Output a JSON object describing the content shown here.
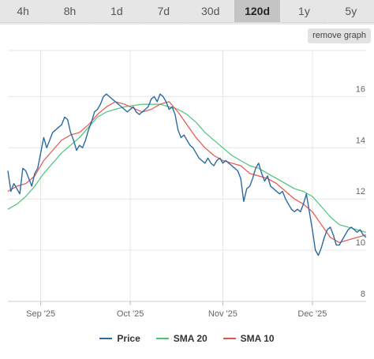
{
  "tabs": [
    {
      "label": "4h",
      "active": false
    },
    {
      "label": "8h",
      "active": false
    },
    {
      "label": "1d",
      "active": false
    },
    {
      "label": "7d",
      "active": false
    },
    {
      "label": "30d",
      "active": false
    },
    {
      "label": "120d",
      "active": true
    },
    {
      "label": "1y",
      "active": false
    },
    {
      "label": "5y",
      "active": false
    }
  ],
  "remove_graph_label": "remove graph",
  "chart_data": {
    "type": "line",
    "x_start": "2025-08-21",
    "ylim": [
      8,
      17.8
    ],
    "yticks": [
      8,
      10,
      12,
      14,
      16
    ],
    "xticks": [
      {
        "date": "2025-09-01",
        "label": "Sep '25"
      },
      {
        "date": "2025-10-01",
        "label": "Oct '25"
      },
      {
        "date": "2025-11-01",
        "label": "Nov '25"
      },
      {
        "date": "2025-12-01",
        "label": "Dec '25"
      }
    ],
    "grid": true,
    "legend_position": "bottom",
    "series": [
      {
        "name": "Price",
        "color": "#2b6aa0",
        "points": [
          [
            "2025-08-21",
            13.1
          ],
          [
            "2025-08-22",
            12.3
          ],
          [
            "2025-08-23",
            12.6
          ],
          [
            "2025-08-24",
            12.4
          ],
          [
            "2025-08-25",
            12.2
          ],
          [
            "2025-08-26",
            13.2
          ],
          [
            "2025-08-27",
            13.1
          ],
          [
            "2025-08-28",
            12.8
          ],
          [
            "2025-08-29",
            12.5
          ],
          [
            "2025-08-30",
            13.0
          ],
          [
            "2025-08-31",
            13.2
          ],
          [
            "2025-09-01",
            13.8
          ],
          [
            "2025-09-02",
            14.4
          ],
          [
            "2025-09-03",
            14.0
          ],
          [
            "2025-09-04",
            14.3
          ],
          [
            "2025-09-05",
            14.6
          ],
          [
            "2025-09-06",
            14.7
          ],
          [
            "2025-09-07",
            14.8
          ],
          [
            "2025-09-08",
            14.9
          ],
          [
            "2025-09-09",
            15.2
          ],
          [
            "2025-09-10",
            15.1
          ],
          [
            "2025-09-11",
            14.6
          ],
          [
            "2025-09-12",
            14.3
          ],
          [
            "2025-09-13",
            13.9
          ],
          [
            "2025-09-14",
            14.1
          ],
          [
            "2025-09-15",
            14.0
          ],
          [
            "2025-09-16",
            14.3
          ],
          [
            "2025-09-17",
            14.7
          ],
          [
            "2025-09-18",
            15.0
          ],
          [
            "2025-09-19",
            15.4
          ],
          [
            "2025-09-20",
            15.5
          ],
          [
            "2025-09-21",
            15.7
          ],
          [
            "2025-09-22",
            16.0
          ],
          [
            "2025-09-23",
            16.1
          ],
          [
            "2025-09-24",
            16.0
          ],
          [
            "2025-09-25",
            15.9
          ],
          [
            "2025-09-26",
            15.8
          ],
          [
            "2025-09-27",
            15.7
          ],
          [
            "2025-09-28",
            15.6
          ],
          [
            "2025-09-29",
            15.5
          ],
          [
            "2025-09-30",
            15.4
          ],
          [
            "2025-10-01",
            15.5
          ],
          [
            "2025-10-02",
            15.6
          ],
          [
            "2025-10-03",
            15.4
          ],
          [
            "2025-10-04",
            15.3
          ],
          [
            "2025-10-05",
            15.4
          ],
          [
            "2025-10-06",
            15.5
          ],
          [
            "2025-10-07",
            15.6
          ],
          [
            "2025-10-08",
            15.9
          ],
          [
            "2025-10-09",
            16.0
          ],
          [
            "2025-10-10",
            15.8
          ],
          [
            "2025-10-11",
            16.1
          ],
          [
            "2025-10-12",
            16.0
          ],
          [
            "2025-10-13",
            15.8
          ],
          [
            "2025-10-14",
            15.5
          ],
          [
            "2025-10-15",
            15.6
          ],
          [
            "2025-10-16",
            15.3
          ],
          [
            "2025-10-17",
            14.7
          ],
          [
            "2025-10-18",
            14.4
          ],
          [
            "2025-10-19",
            14.5
          ],
          [
            "2025-10-20",
            14.3
          ],
          [
            "2025-10-21",
            14.1
          ],
          [
            "2025-10-22",
            14.0
          ],
          [
            "2025-10-23",
            13.8
          ],
          [
            "2025-10-24",
            13.6
          ],
          [
            "2025-10-25",
            13.5
          ],
          [
            "2025-10-26",
            13.4
          ],
          [
            "2025-10-27",
            13.6
          ],
          [
            "2025-10-28",
            13.4
          ],
          [
            "2025-10-29",
            13.3
          ],
          [
            "2025-10-30",
            13.5
          ],
          [
            "2025-10-31",
            13.6
          ],
          [
            "2025-11-01",
            13.4
          ],
          [
            "2025-11-02",
            13.5
          ],
          [
            "2025-11-03",
            13.4
          ],
          [
            "2025-11-04",
            13.3
          ],
          [
            "2025-11-05",
            13.2
          ],
          [
            "2025-11-06",
            13.1
          ],
          [
            "2025-11-07",
            12.8
          ],
          [
            "2025-11-08",
            11.9
          ],
          [
            "2025-11-09",
            12.4
          ],
          [
            "2025-11-10",
            12.5
          ],
          [
            "2025-11-11",
            12.8
          ],
          [
            "2025-11-12",
            13.2
          ],
          [
            "2025-11-13",
            13.4
          ],
          [
            "2025-11-14",
            13.0
          ],
          [
            "2025-11-15",
            12.7
          ],
          [
            "2025-11-16",
            12.9
          ],
          [
            "2025-11-17",
            12.5
          ],
          [
            "2025-11-18",
            12.4
          ],
          [
            "2025-11-19",
            12.3
          ],
          [
            "2025-11-20",
            12.2
          ],
          [
            "2025-11-21",
            12.3
          ],
          [
            "2025-11-22",
            12.0
          ],
          [
            "2025-11-23",
            11.8
          ],
          [
            "2025-11-24",
            11.6
          ],
          [
            "2025-11-25",
            11.5
          ],
          [
            "2025-11-26",
            11.6
          ],
          [
            "2025-11-27",
            11.5
          ],
          [
            "2025-11-28",
            11.8
          ],
          [
            "2025-11-29",
            12.2
          ],
          [
            "2025-11-30",
            11.5
          ],
          [
            "2025-12-01",
            10.8
          ],
          [
            "2025-12-02",
            10.0
          ],
          [
            "2025-12-03",
            9.8
          ],
          [
            "2025-12-04",
            10.1
          ],
          [
            "2025-12-05",
            10.5
          ],
          [
            "2025-12-06",
            10.8
          ],
          [
            "2025-12-07",
            10.9
          ],
          [
            "2025-12-08",
            10.6
          ],
          [
            "2025-12-09",
            10.2
          ],
          [
            "2025-12-10",
            10.2
          ],
          [
            "2025-12-11",
            10.4
          ],
          [
            "2025-12-12",
            10.6
          ],
          [
            "2025-12-13",
            10.8
          ],
          [
            "2025-12-14",
            10.9
          ],
          [
            "2025-12-15",
            10.8
          ],
          [
            "2025-12-16",
            10.7
          ],
          [
            "2025-12-17",
            10.8
          ],
          [
            "2025-12-18",
            10.6
          ],
          [
            "2025-12-19",
            10.5
          ]
        ]
      },
      {
        "name": "SMA 20",
        "color": "#4cc47a",
        "points": [
          [
            "2025-08-21",
            11.6
          ],
          [
            "2025-08-24",
            11.8
          ],
          [
            "2025-08-27",
            12.1
          ],
          [
            "2025-08-30",
            12.5
          ],
          [
            "2025-09-02",
            13.0
          ],
          [
            "2025-09-05",
            13.4
          ],
          [
            "2025-09-08",
            13.8
          ],
          [
            "2025-09-11",
            14.1
          ],
          [
            "2025-09-14",
            14.4
          ],
          [
            "2025-09-17",
            14.8
          ],
          [
            "2025-09-20",
            15.2
          ],
          [
            "2025-09-23",
            15.4
          ],
          [
            "2025-09-26",
            15.5
          ],
          [
            "2025-09-29",
            15.6
          ],
          [
            "2025-10-02",
            15.65
          ],
          [
            "2025-10-05",
            15.7
          ],
          [
            "2025-10-08",
            15.7
          ],
          [
            "2025-10-11",
            15.7
          ],
          [
            "2025-10-14",
            15.6
          ],
          [
            "2025-10-17",
            15.5
          ],
          [
            "2025-10-20",
            15.3
          ],
          [
            "2025-10-23",
            15.0
          ],
          [
            "2025-10-26",
            14.6
          ],
          [
            "2025-10-29",
            14.3
          ],
          [
            "2025-11-01",
            14.0
          ],
          [
            "2025-11-04",
            13.7
          ],
          [
            "2025-11-07",
            13.5
          ],
          [
            "2025-11-10",
            13.3
          ],
          [
            "2025-11-13",
            13.2
          ],
          [
            "2025-11-16",
            13.0
          ],
          [
            "2025-11-19",
            12.8
          ],
          [
            "2025-11-22",
            12.6
          ],
          [
            "2025-11-25",
            12.4
          ],
          [
            "2025-11-28",
            12.3
          ],
          [
            "2025-12-01",
            12.1
          ],
          [
            "2025-12-04",
            11.7
          ],
          [
            "2025-12-07",
            11.3
          ],
          [
            "2025-12-10",
            11.0
          ],
          [
            "2025-12-13",
            10.9
          ],
          [
            "2025-12-16",
            10.8
          ],
          [
            "2025-12-19",
            10.7
          ]
        ]
      },
      {
        "name": "SMA 10",
        "color": "#e8524a",
        "points": [
          [
            "2025-08-21",
            12.3
          ],
          [
            "2025-08-24",
            12.5
          ],
          [
            "2025-08-27",
            12.6
          ],
          [
            "2025-08-30",
            12.9
          ],
          [
            "2025-09-02",
            13.5
          ],
          [
            "2025-09-05",
            13.9
          ],
          [
            "2025-09-08",
            14.3
          ],
          [
            "2025-09-11",
            14.5
          ],
          [
            "2025-09-14",
            14.6
          ],
          [
            "2025-09-17",
            14.9
          ],
          [
            "2025-09-20",
            15.3
          ],
          [
            "2025-09-23",
            15.6
          ],
          [
            "2025-09-26",
            15.8
          ],
          [
            "2025-09-29",
            15.7
          ],
          [
            "2025-10-02",
            15.55
          ],
          [
            "2025-10-05",
            15.4
          ],
          [
            "2025-10-08",
            15.5
          ],
          [
            "2025-10-11",
            15.7
          ],
          [
            "2025-10-14",
            15.8
          ],
          [
            "2025-10-17",
            15.4
          ],
          [
            "2025-10-20",
            14.9
          ],
          [
            "2025-10-23",
            14.4
          ],
          [
            "2025-10-26",
            14.0
          ],
          [
            "2025-10-29",
            13.7
          ],
          [
            "2025-11-01",
            13.5
          ],
          [
            "2025-11-04",
            13.4
          ],
          [
            "2025-11-07",
            13.3
          ],
          [
            "2025-11-10",
            13.0
          ],
          [
            "2025-11-13",
            12.9
          ],
          [
            "2025-11-16",
            12.8
          ],
          [
            "2025-11-19",
            12.6
          ],
          [
            "2025-11-22",
            12.3
          ],
          [
            "2025-11-25",
            12.0
          ],
          [
            "2025-11-28",
            11.8
          ],
          [
            "2025-12-01",
            11.5
          ],
          [
            "2025-12-04",
            11.0
          ],
          [
            "2025-12-07",
            10.5
          ],
          [
            "2025-12-10",
            10.3
          ],
          [
            "2025-12-13",
            10.4
          ],
          [
            "2025-12-16",
            10.5
          ],
          [
            "2025-12-19",
            10.6
          ]
        ]
      }
    ]
  }
}
